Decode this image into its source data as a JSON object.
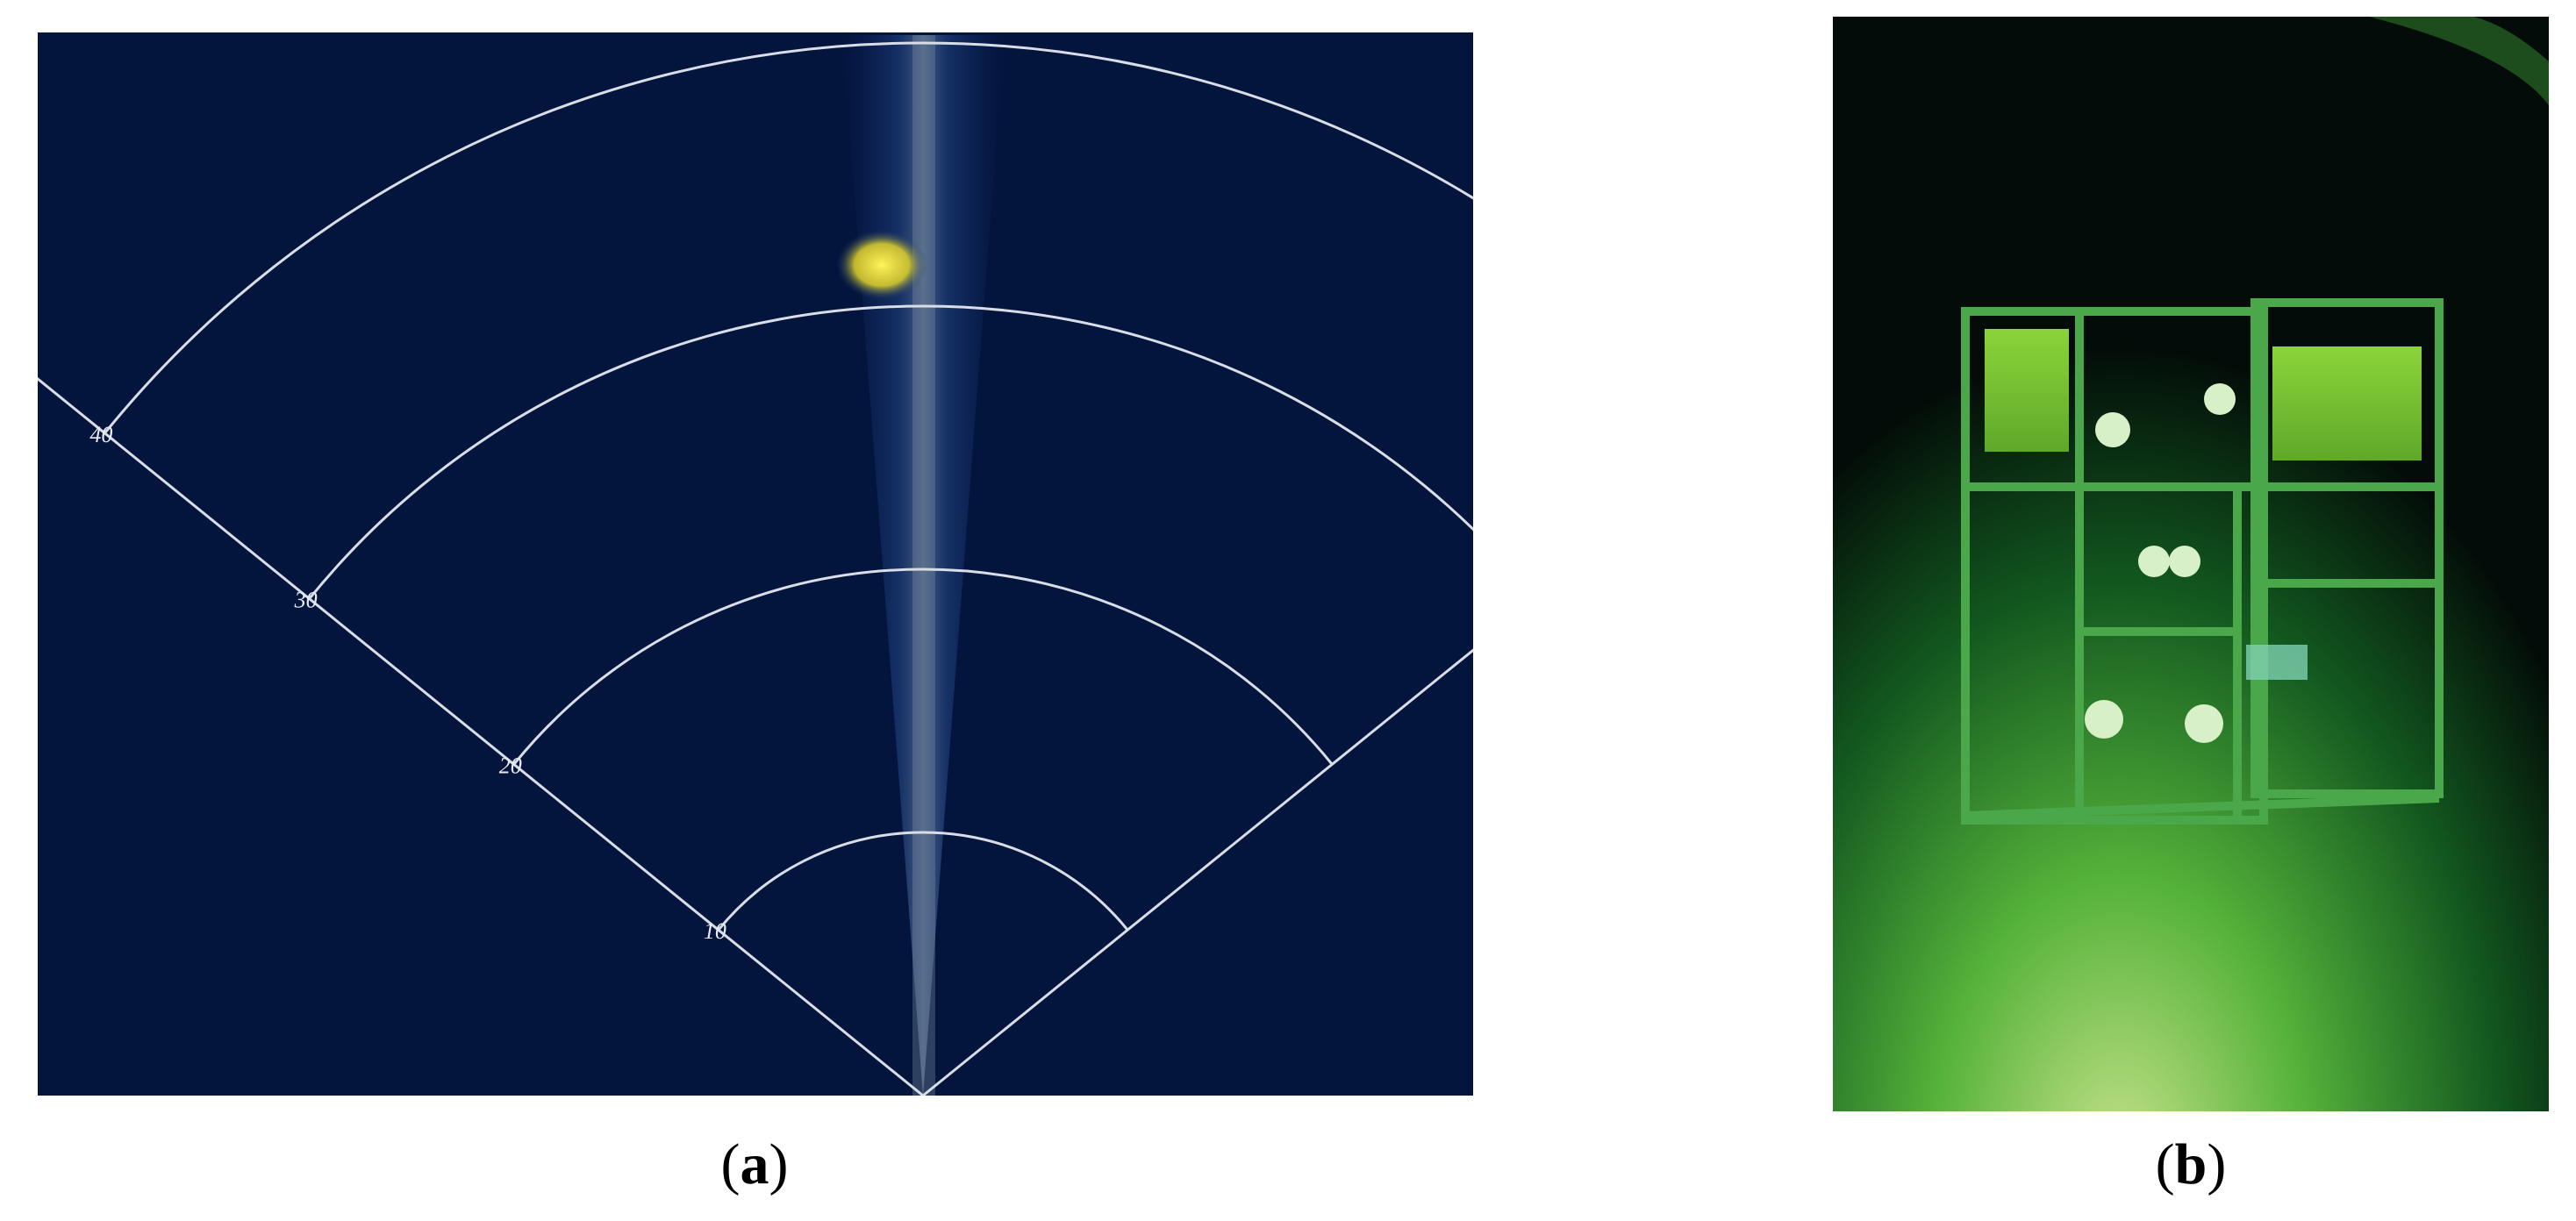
{
  "figure": {
    "panels": [
      {
        "caption": "(a)",
        "range_labels": [
          10,
          20,
          30,
          40
        ]
      },
      {
        "caption": "(b)"
      }
    ]
  }
}
